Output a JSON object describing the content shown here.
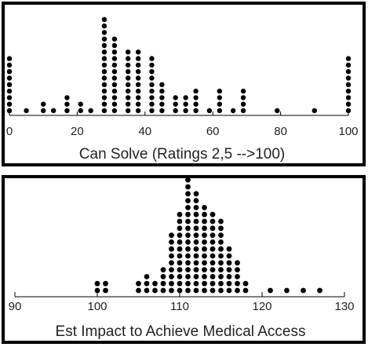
{
  "chart_data": [
    {
      "type": "dot",
      "xlabel": "Can Solve (Ratings 2,5 -->100)",
      "xlim": [
        0,
        100
      ],
      "xticks": [
        0,
        20,
        40,
        60,
        80,
        100
      ],
      "points": [
        {
          "x": 0,
          "count": 9
        },
        {
          "x": 5,
          "count": 1
        },
        {
          "x": 10,
          "count": 2
        },
        {
          "x": 13,
          "count": 1
        },
        {
          "x": 17,
          "count": 3
        },
        {
          "x": 21,
          "count": 2
        },
        {
          "x": 24,
          "count": 1
        },
        {
          "x": 28,
          "count": 15
        },
        {
          "x": 31,
          "count": 12
        },
        {
          "x": 35,
          "count": 10
        },
        {
          "x": 38,
          "count": 10
        },
        {
          "x": 42,
          "count": 9
        },
        {
          "x": 45,
          "count": 5
        },
        {
          "x": 49,
          "count": 3
        },
        {
          "x": 52,
          "count": 3
        },
        {
          "x": 55,
          "count": 4
        },
        {
          "x": 59,
          "count": 1
        },
        {
          "x": 62,
          "count": 4
        },
        {
          "x": 66,
          "count": 1
        },
        {
          "x": 69,
          "count": 4
        },
        {
          "x": 79,
          "count": 1
        },
        {
          "x": 90,
          "count": 1
        },
        {
          "x": 100,
          "count": 9
        }
      ]
    },
    {
      "type": "dot",
      "xlabel": "Est Impact to Achieve Medical Access",
      "xlim": [
        90,
        130
      ],
      "xticks": [
        90,
        100,
        110,
        120,
        130
      ],
      "points": [
        {
          "x": 100,
          "count": 2
        },
        {
          "x": 101,
          "count": 2
        },
        {
          "x": 105,
          "count": 2
        },
        {
          "x": 106,
          "count": 3
        },
        {
          "x": 107,
          "count": 2
        },
        {
          "x": 108,
          "count": 4
        },
        {
          "x": 109,
          "count": 9
        },
        {
          "x": 110,
          "count": 12
        },
        {
          "x": 111,
          "count": 17
        },
        {
          "x": 112,
          "count": 15
        },
        {
          "x": 113,
          "count": 13
        },
        {
          "x": 114,
          "count": 12
        },
        {
          "x": 115,
          "count": 11
        },
        {
          "x": 116,
          "count": 7
        },
        {
          "x": 117,
          "count": 5
        },
        {
          "x": 118,
          "count": 2
        },
        {
          "x": 121,
          "count": 1
        },
        {
          "x": 123,
          "count": 1
        },
        {
          "x": 125,
          "count": 1
        },
        {
          "x": 127,
          "count": 1
        }
      ]
    }
  ]
}
